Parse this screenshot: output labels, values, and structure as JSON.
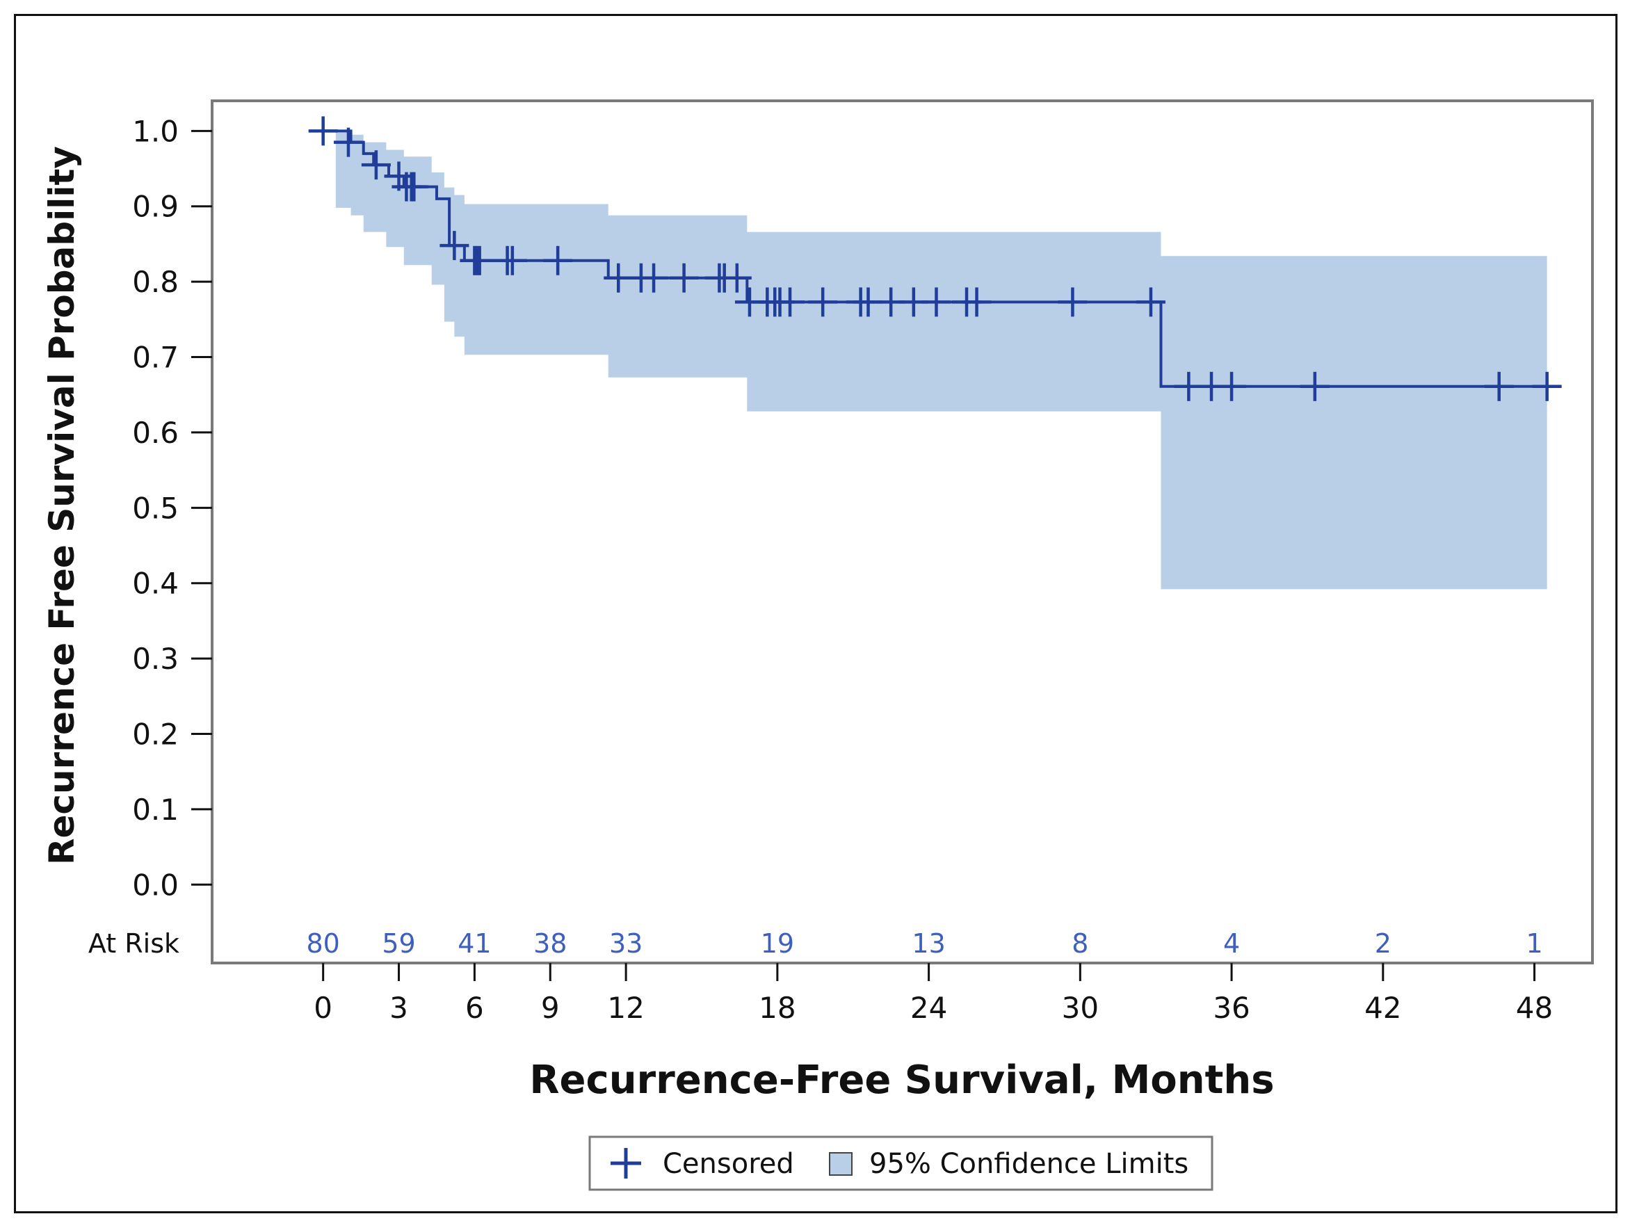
{
  "chart_data": {
    "type": "line",
    "subtype": "kaplan-meier",
    "xlabel": "Recurrence-Free Survival, Months",
    "ylabel": "Recurrence Free Survival Probability",
    "xlim": [
      -4.4,
      50.3
    ],
    "ylim": [
      -0.104,
      1.04
    ],
    "x_ticks": [
      0,
      3,
      6,
      9,
      12,
      18,
      24,
      30,
      36,
      42,
      48
    ],
    "y_ticks": [
      0.0,
      0.1,
      0.2,
      0.3,
      0.4,
      0.5,
      0.6,
      0.7,
      0.8,
      0.9,
      1.0
    ],
    "y_tick_labels": [
      "0.0",
      "0.1",
      "0.2",
      "0.3",
      "0.4",
      "0.5",
      "0.6",
      "0.7",
      "0.8",
      "0.9",
      "1.0"
    ],
    "series": [
      {
        "name": "Survival",
        "color": "#1f3d99",
        "steps": [
          [
            0,
            1.0
          ],
          [
            1.1,
            0.985
          ],
          [
            1.6,
            0.97
          ],
          [
            2.0,
            0.955
          ],
          [
            2.6,
            0.94
          ],
          [
            3.2,
            0.926
          ],
          [
            4.5,
            0.91
          ],
          [
            5.0,
            0.848
          ],
          [
            5.6,
            0.828
          ],
          [
            11.3,
            0.805
          ],
          [
            16.8,
            0.773
          ],
          [
            33.0,
            0.773
          ],
          [
            33.2,
            0.661
          ],
          [
            48.5,
            0.661
          ]
        ]
      }
    ],
    "confidence_band": [
      [
        0.0,
        1.0,
        1.0
      ],
      [
        0.5,
        0.898,
        1.0
      ],
      [
        1.1,
        0.888,
        0.995
      ],
      [
        1.6,
        0.866,
        0.985
      ],
      [
        2.5,
        0.846,
        0.975
      ],
      [
        3.2,
        0.822,
        0.966
      ],
      [
        4.3,
        0.796,
        0.945
      ],
      [
        4.8,
        0.747,
        0.925
      ],
      [
        5.2,
        0.727,
        0.915
      ],
      [
        5.6,
        0.703,
        0.903
      ],
      [
        11.3,
        0.673,
        0.888
      ],
      [
        16.8,
        0.628,
        0.866
      ],
      [
        33.2,
        0.392,
        0.834
      ],
      [
        48.5,
        0.392,
        0.834
      ]
    ],
    "censored": [
      [
        0.0,
        1.0
      ],
      [
        1.0,
        0.985
      ],
      [
        2.1,
        0.955
      ],
      [
        3.0,
        0.94
      ],
      [
        3.3,
        0.926
      ],
      [
        3.5,
        0.926
      ],
      [
        3.6,
        0.926
      ],
      [
        5.2,
        0.848
      ],
      [
        6.0,
        0.828
      ],
      [
        6.1,
        0.828
      ],
      [
        6.2,
        0.828
      ],
      [
        7.3,
        0.828
      ],
      [
        7.5,
        0.828
      ],
      [
        9.3,
        0.828
      ],
      [
        11.7,
        0.805
      ],
      [
        12.6,
        0.805
      ],
      [
        13.1,
        0.805
      ],
      [
        14.3,
        0.805
      ],
      [
        15.7,
        0.805
      ],
      [
        15.9,
        0.805
      ],
      [
        16.4,
        0.805
      ],
      [
        16.9,
        0.773
      ],
      [
        17.6,
        0.773
      ],
      [
        17.9,
        0.773
      ],
      [
        18.1,
        0.773
      ],
      [
        18.5,
        0.773
      ],
      [
        19.8,
        0.773
      ],
      [
        21.3,
        0.773
      ],
      [
        21.6,
        0.773
      ],
      [
        22.5,
        0.773
      ],
      [
        23.4,
        0.773
      ],
      [
        24.3,
        0.773
      ],
      [
        25.5,
        0.773
      ],
      [
        25.9,
        0.773
      ],
      [
        29.7,
        0.773
      ],
      [
        32.8,
        0.773
      ],
      [
        34.3,
        0.661
      ],
      [
        35.2,
        0.661
      ],
      [
        36.0,
        0.661
      ],
      [
        39.3,
        0.661
      ],
      [
        46.6,
        0.661
      ],
      [
        48.5,
        0.661
      ]
    ],
    "at_risk": {
      "label": "At Risk",
      "times": [
        0,
        3,
        6,
        9,
        12,
        18,
        24,
        30,
        36,
        42,
        48
      ],
      "counts": [
        "80",
        "59",
        "41",
        "38",
        "33",
        "19",
        "13",
        "8",
        "4",
        "2",
        "1"
      ]
    },
    "legend": {
      "placement": "bottom-center",
      "items": [
        {
          "label": "Censored",
          "kind": "censor-marker"
        },
        {
          "label": "95% Confidence Limits",
          "kind": "band-swatch"
        }
      ]
    },
    "colors": {
      "line": "#1f3d99",
      "band": "#b9cee7",
      "at_risk_text": "#3f5fbf",
      "frame": "#7a7a7a"
    }
  }
}
